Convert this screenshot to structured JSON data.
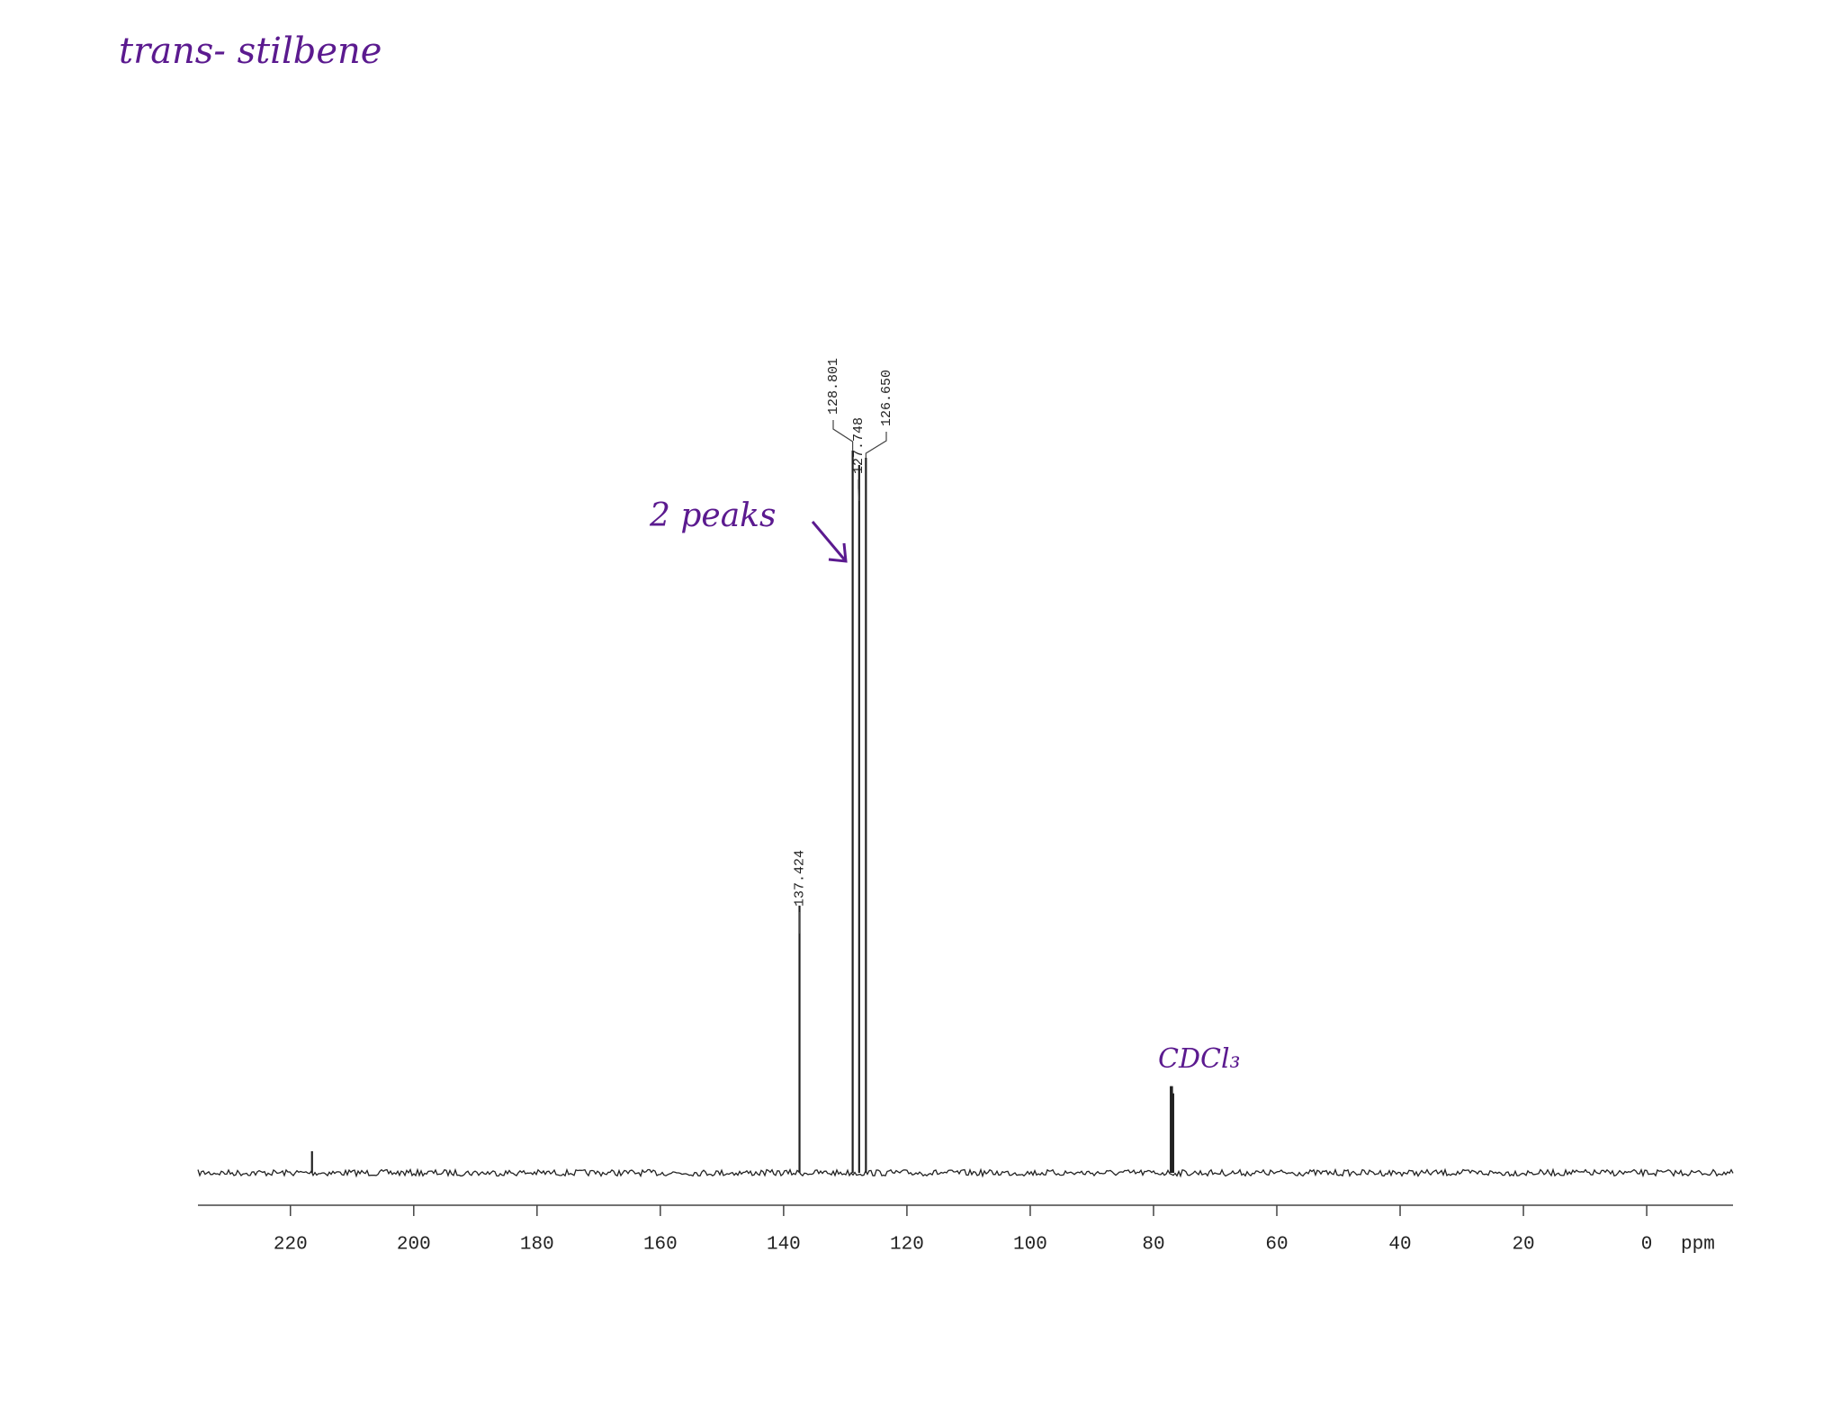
{
  "chart_data": {
    "type": "spectrum",
    "title": "trans- stilbene",
    "x_label": "ppm",
    "annotations": [
      "2 peaks",
      "CDCl₃"
    ],
    "x": [
      216.5,
      137.424,
      128.801,
      127.748,
      126.65,
      77.2,
      77.0,
      76.8
    ],
    "x_labels": [
      null,
      "137.424",
      "128.801",
      "127.748",
      "126.650",
      null,
      null,
      null
    ],
    "values": [
      3,
      37,
      100,
      98,
      99,
      12,
      12,
      11
    ],
    "color": "#222222",
    "annotation_color": "#5b1a8f",
    "xlim": [
      235,
      -14
    ],
    "ylim": [
      0,
      130
    ],
    "xticks": [
      220,
      200,
      180,
      160,
      140,
      120,
      100,
      80,
      60,
      40,
      20,
      0
    ]
  }
}
